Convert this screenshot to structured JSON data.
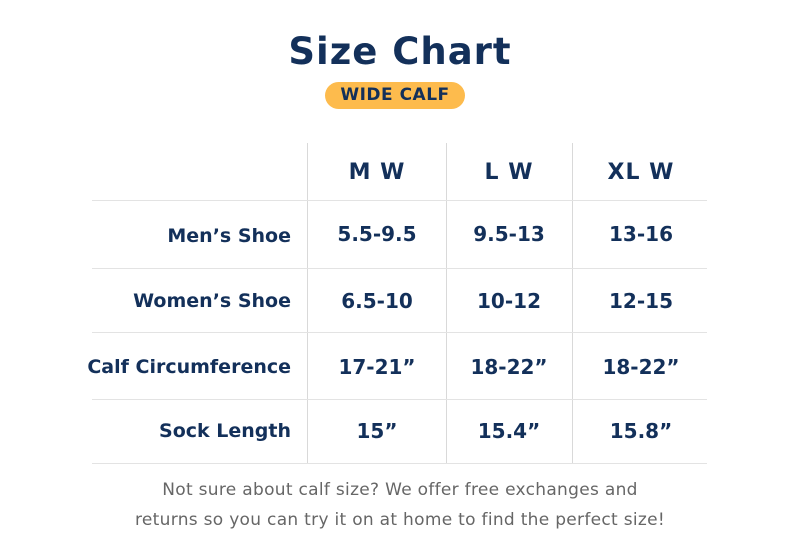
{
  "title": "Size Chart",
  "badge": "WIDE CALF",
  "colors": {
    "text": "#13305a",
    "badge": "#fdbb4d",
    "footer": "#666666"
  },
  "table": {
    "columns": [
      "M W",
      "L W",
      "XL W"
    ],
    "rows": [
      {
        "label": "Men’s Shoe",
        "values": [
          "5.5-9.5",
          "9.5-13",
          "13-16"
        ]
      },
      {
        "label": "Women’s Shoe",
        "values": [
          "6.5-10",
          "10-12",
          "12-15"
        ]
      },
      {
        "label": "Calf Circumference",
        "values": [
          "17-21”",
          "18-22”",
          "18-22”"
        ]
      },
      {
        "label": "Sock Length",
        "values": [
          "15”",
          "15.4”",
          "15.8”"
        ]
      }
    ]
  },
  "footer": {
    "line1": "Not sure about calf size? We offer free exchanges and",
    "line2": "returns so you can try it on at home to find the perfect size!"
  }
}
